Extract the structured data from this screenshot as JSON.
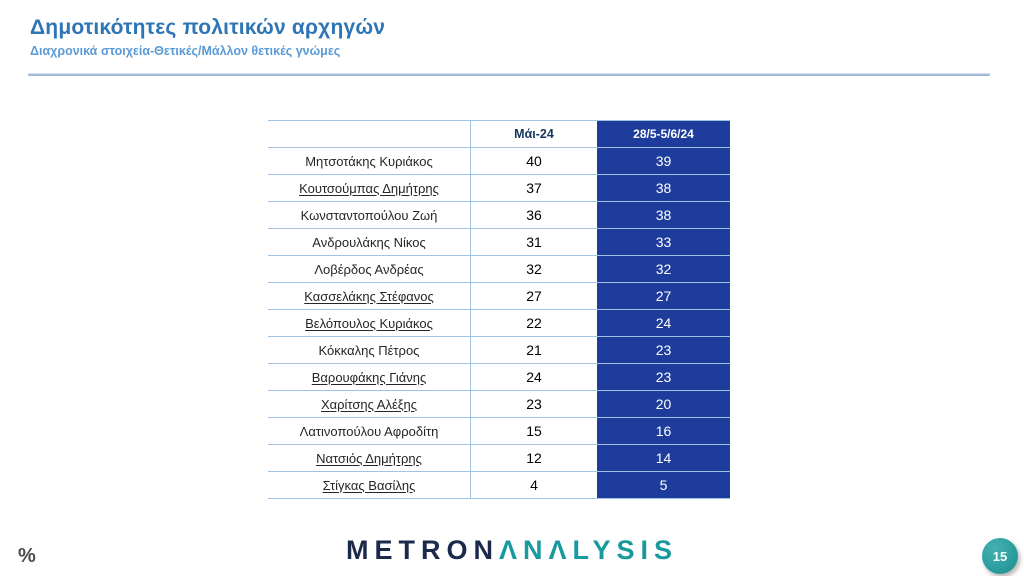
{
  "slide": {
    "title": "Δημοτικότητες πολιτικών αρχηγών",
    "subtitle": "Διαχρονικά στοιχεία-Θετικές/Μάλλον θετικές γνώμες"
  },
  "table": {
    "columns": [
      "",
      "Μάι-24",
      "28/5-5/6/24"
    ],
    "rows": [
      {
        "name": "Μητσοτάκης Κυριάκος",
        "may24": 40,
        "jun24": 39,
        "underline": false
      },
      {
        "name": "Κουτσούμπας Δημήτρης",
        "may24": 37,
        "jun24": 38,
        "underline": true
      },
      {
        "name": "Κωνσταντοπούλου Ζωή",
        "may24": 36,
        "jun24": 38,
        "underline": false
      },
      {
        "name": "Ανδρουλάκης Νίκος",
        "may24": 31,
        "jun24": 33,
        "underline": false
      },
      {
        "name": "Λοβέρδος Ανδρέας",
        "may24": 32,
        "jun24": 32,
        "underline": false
      },
      {
        "name": "Κασσελάκης Στέφανος",
        "may24": 27,
        "jun24": 27,
        "underline": true
      },
      {
        "name": "Βελόπουλος Κυριάκος",
        "may24": 22,
        "jun24": 24,
        "underline": true
      },
      {
        "name": "Κόκκαλης Πέτρος",
        "may24": 21,
        "jun24": 23,
        "underline": false
      },
      {
        "name": "Βαρουφάκης Γιάνης",
        "may24": 24,
        "jun24": 23,
        "underline": true
      },
      {
        "name": "Χαρίτσης Αλέξης",
        "may24": 23,
        "jun24": 20,
        "underline": true
      },
      {
        "name": "Λατινοπούλου Αφροδίτη",
        "may24": 15,
        "jun24": 16,
        "underline": false
      },
      {
        "name": "Νατσιός Δημήτρης",
        "may24": 12,
        "jun24": 14,
        "underline": true
      },
      {
        "name": "Στίγκας Βασίλης",
        "may24": 4,
        "jun24": 5,
        "underline": true
      }
    ]
  },
  "footer": {
    "percent_label": "%",
    "logo": {
      "part1": "METRON",
      "part2": "ΛNΛLYSIS"
    },
    "page_number": "15"
  },
  "colors": {
    "title_blue": "#2E75B6",
    "subtitle_blue": "#5B9BD5",
    "table_dark_blue": "#1E3C9B",
    "row_border_blue": "#9DC3E6",
    "header_text_navy": "#17365D",
    "logo_navy": "#1B2A4B",
    "logo_teal": "#17999E",
    "page_circle_teal": "#2A9D9E"
  }
}
